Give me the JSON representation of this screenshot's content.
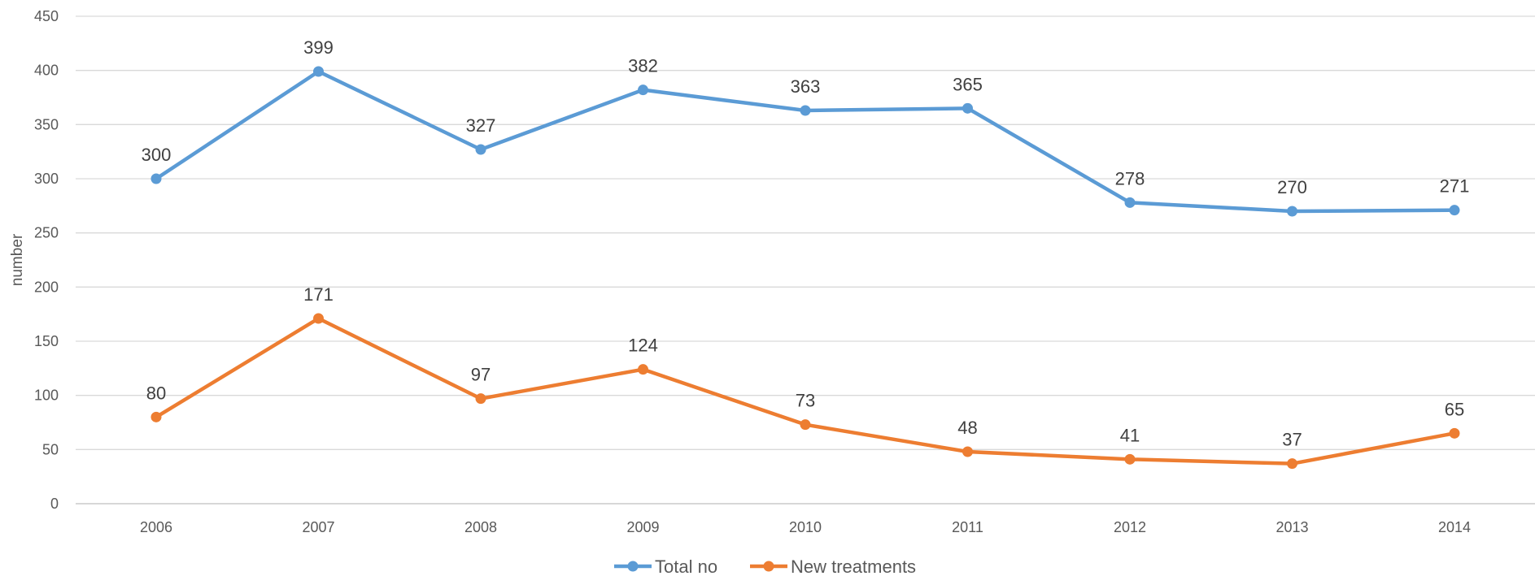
{
  "chart_data": {
    "type": "line",
    "title": "",
    "xlabel": "",
    "ylabel": "number",
    "categories": [
      "2006",
      "2007",
      "2008",
      "2009",
      "2010",
      "2011",
      "2012",
      "2013",
      "2014"
    ],
    "ylim": [
      0,
      450
    ],
    "yticks": [
      "0",
      "50",
      "100",
      "150",
      "200",
      "250",
      "300",
      "350",
      "400",
      "450"
    ],
    "grid": true,
    "legend_position": "bottom",
    "series": [
      {
        "name": "Total no",
        "color": "#5b9bd5",
        "values": [
          300,
          399,
          327,
          382,
          363,
          365,
          278,
          270,
          271
        ],
        "labels": [
          "300",
          "399",
          "327",
          "382",
          "363",
          "365",
          "278",
          "270",
          "271"
        ]
      },
      {
        "name": "New treatments",
        "color": "#ed7d31",
        "values": [
          80,
          171,
          97,
          124,
          73,
          48,
          41,
          37,
          65
        ],
        "labels": [
          "80",
          "171",
          "97",
          "124",
          "73",
          "48",
          "41",
          "37",
          "65"
        ]
      }
    ]
  }
}
